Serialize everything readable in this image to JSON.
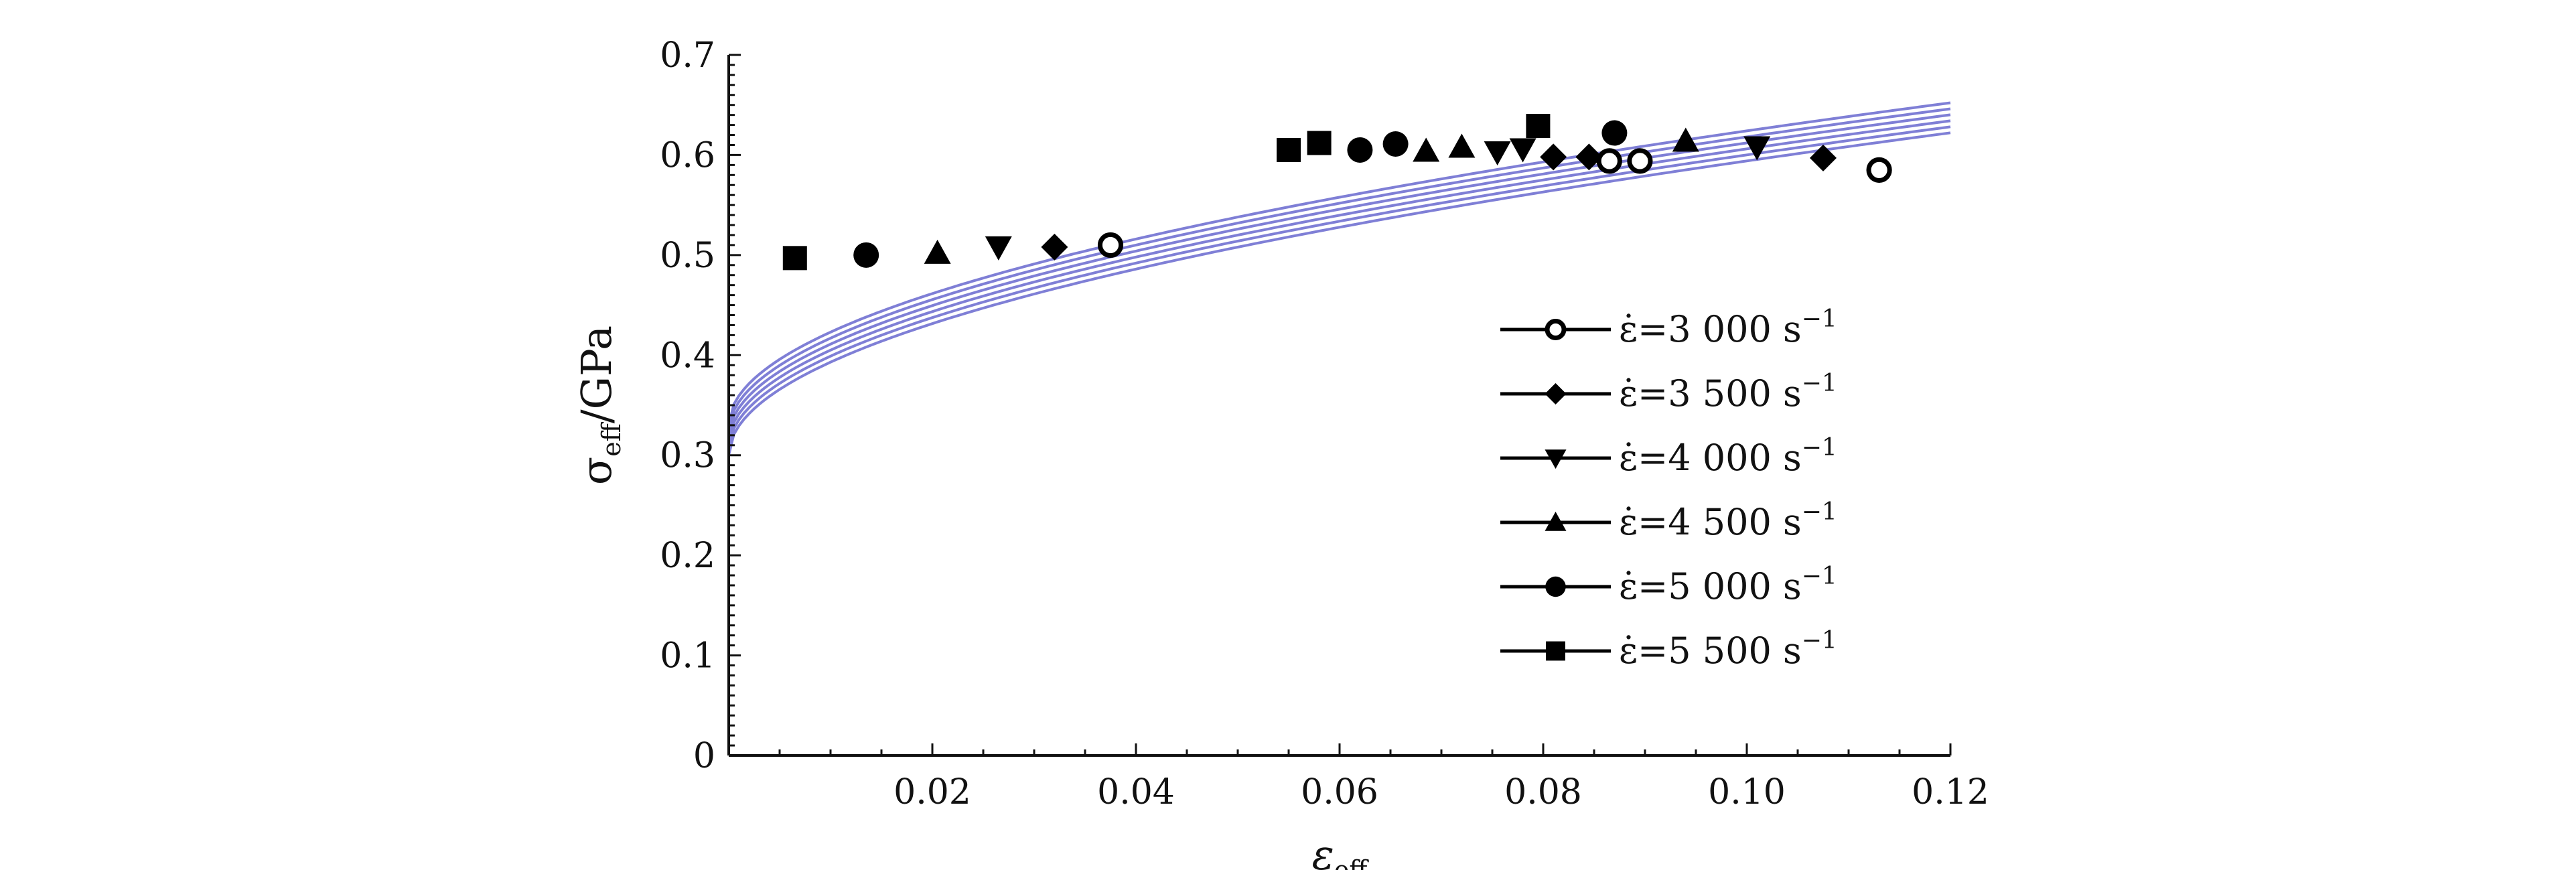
{
  "chart_data": {
    "type": "scatter",
    "title": "",
    "xlabel": "ε",
    "xlabel_sub": "eff",
    "ylabel_prefix": "σ",
    "ylabel_sub": "eff",
    "ylabel_suffix": "/GPa",
    "xlim": [
      0,
      0.12
    ],
    "ylim": [
      0,
      0.7
    ],
    "x_ticks": [
      "0.02",
      "0.04",
      "0.06",
      "0.08",
      "0.10",
      "0.12"
    ],
    "x_tick_values": [
      0.02,
      0.04,
      0.06,
      0.08,
      0.1,
      0.12
    ],
    "y_ticks": [
      "0",
      "0.1",
      "0.2",
      "0.3",
      "0.4",
      "0.5",
      "0.6",
      "0.7"
    ],
    "y_tick_values": [
      0,
      0.1,
      0.2,
      0.3,
      0.4,
      0.5,
      0.6,
      0.7
    ],
    "grid": false,
    "legend_position": "right-middle",
    "fit_curve_color": "#7f7fd6",
    "fit_curves": [
      {
        "y0": 0.3,
        "coef": 0.93,
        "exp": 0.5
      },
      {
        "y0": 0.306,
        "coef": 0.93,
        "exp": 0.5
      },
      {
        "y0": 0.312,
        "coef": 0.93,
        "exp": 0.5
      },
      {
        "y0": 0.318,
        "coef": 0.93,
        "exp": 0.5
      },
      {
        "y0": 0.324,
        "coef": 0.93,
        "exp": 0.5
      },
      {
        "y0": 0.33,
        "coef": 0.93,
        "exp": 0.5
      }
    ],
    "series": [
      {
        "name": "ε̇=3 000 s",
        "exponent": "−1",
        "marker": "circle-open",
        "points": [
          [
            0.0375,
            0.51
          ],
          [
            0.0865,
            0.594
          ],
          [
            0.0895,
            0.594
          ],
          [
            0.113,
            0.585
          ]
        ]
      },
      {
        "name": "ε̇=3 500 s",
        "exponent": "−1",
        "marker": "diamond",
        "points": [
          [
            0.032,
            0.508
          ],
          [
            0.081,
            0.598
          ],
          [
            0.0845,
            0.598
          ],
          [
            0.1075,
            0.597
          ]
        ]
      },
      {
        "name": "ε̇=4 000 s",
        "exponent": "−1",
        "marker": "triangle-down",
        "points": [
          [
            0.0265,
            0.508
          ],
          [
            0.0755,
            0.603
          ],
          [
            0.078,
            0.606
          ],
          [
            0.101,
            0.608
          ]
        ]
      },
      {
        "name": "ε̇=4 500 s",
        "exponent": "−1",
        "marker": "triangle-up",
        "points": [
          [
            0.0205,
            0.502
          ],
          [
            0.0685,
            0.604
          ],
          [
            0.072,
            0.608
          ],
          [
            0.094,
            0.614
          ]
        ]
      },
      {
        "name": "ε̇=5 000 s",
        "exponent": "−1",
        "marker": "circle",
        "points": [
          [
            0.0135,
            0.5
          ],
          [
            0.062,
            0.605
          ],
          [
            0.0655,
            0.611
          ],
          [
            0.087,
            0.622
          ]
        ]
      },
      {
        "name": "ε̇=5 500 s",
        "exponent": "−1",
        "marker": "square",
        "points": [
          [
            0.0065,
            0.497
          ],
          [
            0.055,
            0.605
          ],
          [
            0.058,
            0.612
          ],
          [
            0.0795,
            0.629
          ]
        ]
      }
    ]
  }
}
